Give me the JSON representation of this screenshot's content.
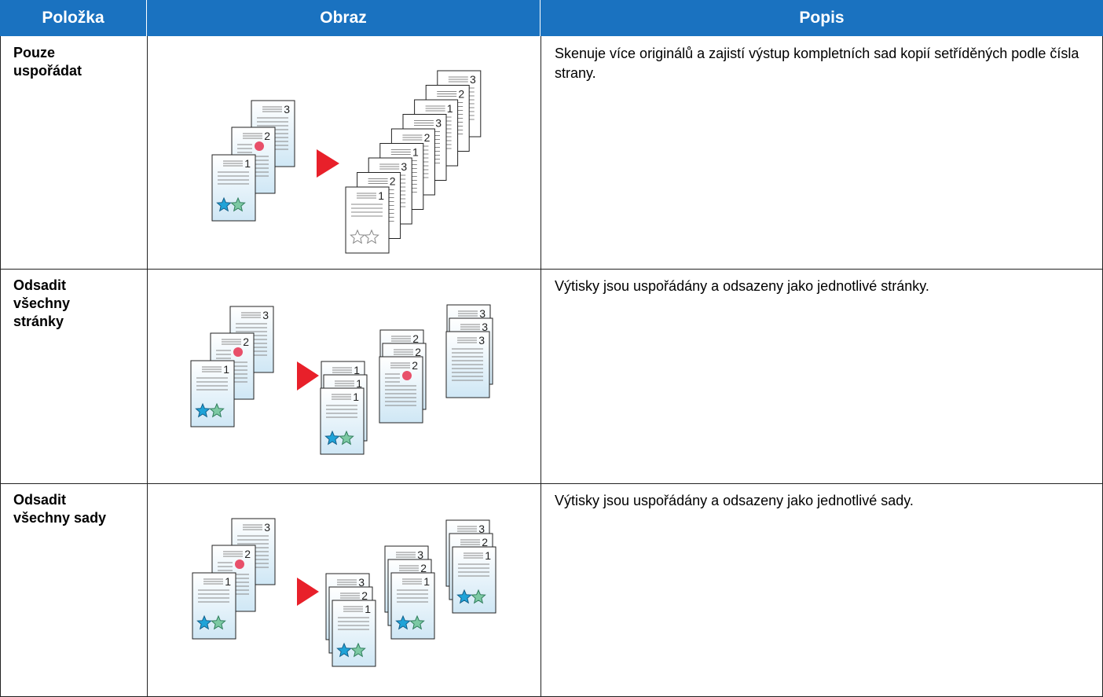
{
  "header": {
    "columns": [
      "Položka",
      "Obraz",
      "Popis"
    ]
  },
  "table": {
    "rows": [
      [
        "Pouze uspořádat",
        "Skenuje více originálů a zajistí výstup kompletních sad kopií setříděných podle čísla strany."
      ],
      [
        "Odsadit všechny stránky",
        "Výtisky jsou uspořádány a odsazeny jako jednotlivé stránky."
      ],
      [
        "Odsadit všechny sady",
        "Výtisky jsou uspořádány a odsazeny jako jednotlivé sady."
      ]
    ]
  },
  "page_numbers": [
    "1",
    "2",
    "3"
  ]
}
